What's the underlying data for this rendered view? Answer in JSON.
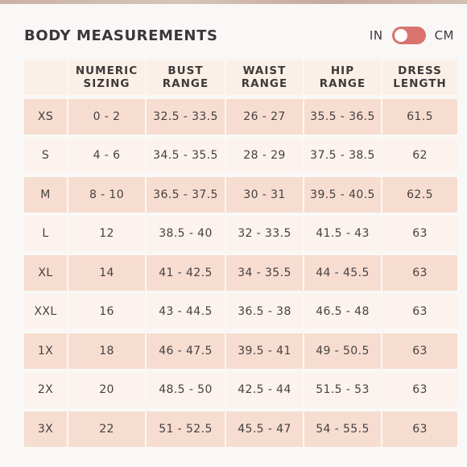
{
  "title": "BODY MEASUREMENTS",
  "units": {
    "left": "IN",
    "right": "CM",
    "toggle_state": "CM"
  },
  "colors": {
    "accent": "#d9736d",
    "row_dark": "#f7ddd0",
    "row_light": "#fcf3ee",
    "header_bg": "#fbf0e8"
  },
  "table": {
    "headers": [
      "",
      "NUMERIC\nSIZING",
      "BUST\nRANGE",
      "WAIST\nRANGE",
      "HIP\nRANGE",
      "DRESS\nLENGTH"
    ],
    "rows": [
      [
        "XS",
        "0 - 2",
        "32.5 - 33.5",
        "26 - 27",
        "35.5 - 36.5",
        "61.5"
      ],
      [
        "S",
        "4 - 6",
        "34.5 - 35.5",
        "28 - 29",
        "37.5 - 38.5",
        "62"
      ],
      [
        "M",
        "8 - 10",
        "36.5 - 37.5",
        "30 - 31",
        "39.5 - 40.5",
        "62.5"
      ],
      [
        "L",
        "12",
        "38.5 - 40",
        "32 - 33.5",
        "41.5 - 43",
        "63"
      ],
      [
        "XL",
        "14",
        "41 - 42.5",
        "34 - 35.5",
        "44 - 45.5",
        "63"
      ],
      [
        "XXL",
        "16",
        "43 - 44.5",
        "36.5 - 38",
        "46.5 - 48",
        "63"
      ],
      [
        "1X",
        "18",
        "46 - 47.5",
        "39.5 - 41",
        "49 - 50.5",
        "63"
      ],
      [
        "2X",
        "20",
        "48.5 - 50",
        "42.5 - 44",
        "51.5 - 53",
        "63"
      ],
      [
        "3X",
        "22",
        "51 - 52.5",
        "45.5 - 47",
        "54 - 55.5",
        "63"
      ]
    ]
  }
}
